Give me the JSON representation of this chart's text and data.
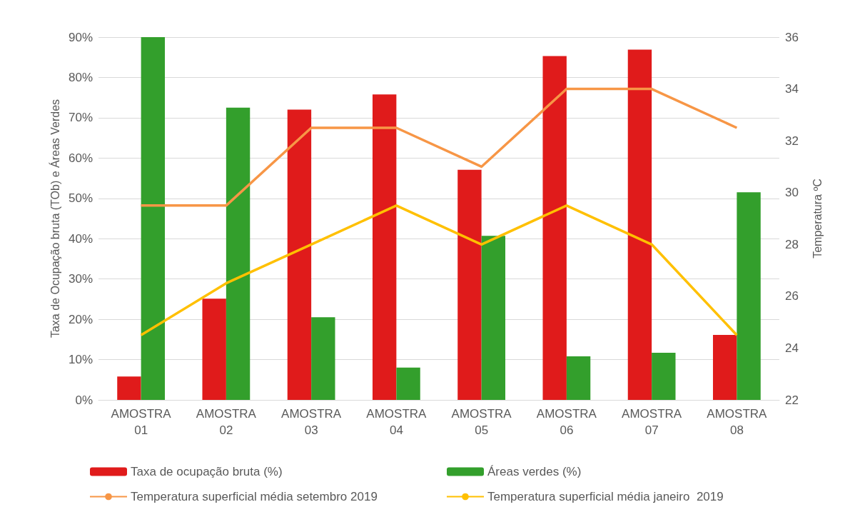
{
  "chart_data": {
    "type": "bar",
    "ylabel": "Taxa de Ocupação bruta (TOb) e Áreas Verdes",
    "y2label": "Temperatura ºC",
    "categories": [
      "AMOSTRA 01",
      "AMOSTRA 02",
      "AMOSTRA 03",
      "AMOSTRA 04",
      "AMOSTRA 05",
      "AMOSTRA 06",
      "AMOSTRA 07",
      "AMOSTRA 08"
    ],
    "series": [
      {
        "name": "Taxa de ocupação bruta (%)",
        "color": "#e01b1b",
        "values": [
          5.8,
          25.1,
          72.0,
          75.8,
          57.1,
          85.3,
          86.9,
          16.1
        ]
      },
      {
        "name": "Áreas verdes (%)",
        "color": "#339f2c",
        "values": [
          90,
          72.5,
          20.5,
          8.0,
          40.7,
          10.8,
          11.7,
          51.5
        ]
      },
      {
        "name": "Temperatura superficial média setembro 2019",
        "type": "line",
        "axis": "y2",
        "color": "#f79646",
        "values": [
          29.5,
          29.5,
          32.5,
          32.5,
          31.0,
          34.0,
          34.0,
          32.5
        ]
      },
      {
        "name": "Temperatura superficial média janeiro  2019",
        "type": "line",
        "axis": "y2",
        "color": "#ffc000",
        "values": [
          24.5,
          26.5,
          28.0,
          29.5,
          28.0,
          29.5,
          28.0,
          24.5
        ]
      }
    ],
    "ylim": [
      0,
      90
    ],
    "yticks": [
      {
        "value": 0,
        "label": "0%"
      },
      {
        "value": 10,
        "label": "10%"
      },
      {
        "value": 20,
        "label": "20%"
      },
      {
        "value": 30,
        "label": "30%"
      },
      {
        "value": 40,
        "label": "40%"
      },
      {
        "value": 50,
        "label": "50%"
      },
      {
        "value": 60,
        "label": "60%"
      },
      {
        "value": 70,
        "label": "70%"
      },
      {
        "value": 80,
        "label": "80%"
      },
      {
        "value": 90,
        "label": "90%"
      }
    ],
    "y2lim": [
      22,
      36
    ],
    "y2ticks": [
      22,
      24,
      26,
      28,
      30,
      32,
      34,
      36
    ],
    "grid": "y",
    "legend": "bottom",
    "marker": "none",
    "line_style": "solid"
  }
}
